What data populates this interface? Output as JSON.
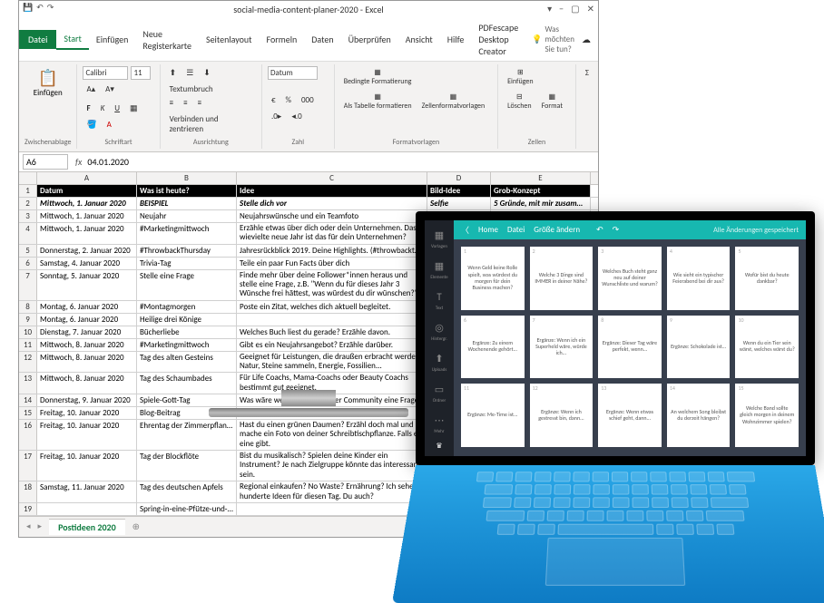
{
  "excel": {
    "title": "social-media-content-planer-2020 - Excel",
    "quickaccess": [
      "⤺",
      "⤻",
      "📄"
    ],
    "wincontrols": [
      "▢",
      "−",
      "✕"
    ],
    "tabs": {
      "file": "Datei",
      "items": [
        "Start",
        "Einfügen",
        "Neue Registerkarte",
        "Seitenlayout",
        "Formeln",
        "Daten",
        "Überprüfen",
        "Ansicht",
        "Hilfe",
        "PDFescape Desktop Creator"
      ],
      "active": "Start",
      "tellme": "Was möchten Sie tun?",
      "share": "☁"
    },
    "ribbon": {
      "clipboard": {
        "label": "Zwischenablage",
        "paste": "Einfügen"
      },
      "font": {
        "label": "Schriftart",
        "name": "Calibri",
        "size": "11"
      },
      "align": {
        "label": "Ausrichtung",
        "wrap": "Textumbruch",
        "merge": "Verbinden und zentrieren"
      },
      "number": {
        "label": "Zahl",
        "format": "Datum"
      },
      "styles": {
        "label": "Formatvorlagen",
        "cond": "Bedingte Formatierung",
        "table": "Als Tabelle formatieren",
        "cell": "Zellenformatvorlagen"
      },
      "cells": {
        "label": "Zellen",
        "insert": "Einfügen",
        "delete": "Löschen",
        "format": "Format"
      }
    },
    "namebox": "A6",
    "formula": "04.01.2020",
    "columns": [
      "A",
      "B",
      "C",
      "D",
      "E"
    ],
    "headers": {
      "a": "Datum",
      "b": "Was ist heute?",
      "c": "Idee",
      "d": "Bild-Idee",
      "e": "Grob-Konzept"
    },
    "data": [
      {
        "n": 2,
        "a": "Mittwoch, 1. Januar 2020",
        "b": "BEISPIEL",
        "c": "Stelle dich vor",
        "d": "Selfie",
        "e": "5 Gründe, mit mir zusammen...",
        "ex": true
      },
      {
        "n": 3,
        "a": "Mittwoch, 1. Januar 2020",
        "b": "Neujahr",
        "c": "Neujahrswünsche und ein Teamfoto",
        "d": "",
        "e": ""
      },
      {
        "n": 4,
        "a": "Mittwoch, 1. Januar 2020",
        "b": "#Marketingmittwoch",
        "c": "Erzähle etwas über dich oder dein Unternehmen. Das wievielte neue Jahr ist das für dein Unternehmen?",
        "d": "",
        "e": "",
        "wrap": true
      },
      {
        "n": 5,
        "a": "Donnerstag, 2. Januar 2020",
        "b": "#ThrowbackThursday",
        "c": "Jahresrückblick 2019. Deine Highlights. (#throwbackthursday #tbt)",
        "d": "",
        "e": ""
      },
      {
        "n": 6,
        "a": "Samstag, 4. Januar 2020",
        "b": "Trivia-Tag",
        "c": "Teile ein paar Fun Facts über dich",
        "d": "",
        "e": ""
      },
      {
        "n": 7,
        "a": "Sonntag, 5. Januar 2020",
        "b": "Stelle eine Frage",
        "c": "Finde mehr über deine Follower*innen heraus und stelle eine Frage, z.B. \"Wenn du für dieses Jahr 3 Wünsche frei hättest, was würdest du dir wünschen?\"",
        "d": "",
        "e": "",
        "wrap": true
      },
      {
        "n": 8,
        "a": "Montag, 6. Januar 2020",
        "b": "#Montagmorgen",
        "c": "Poste ein Zitat, welches dich aktuell begleitet.",
        "d": "",
        "e": ""
      },
      {
        "n": 9,
        "a": "Montag, 6. Januar 2020",
        "b": "Heilige drei Könige",
        "c": "",
        "d": "",
        "e": ""
      },
      {
        "n": 10,
        "a": "Dienstag, 7. Januar 2020",
        "b": "Bücherliebe",
        "c": "Welches Buch liest du gerade? Erzähle davon.",
        "d": "",
        "e": ""
      },
      {
        "n": 11,
        "a": "Mittwoch, 8. Januar 2020",
        "b": "#Marketingmittwoch",
        "c": "Gibt es ein Neujahrsangebot? Erzähle darüber.",
        "d": "",
        "e": ""
      },
      {
        "n": 12,
        "a": "Mittwoch, 8. Januar 2020",
        "b": "Tag des alten Gesteins",
        "c": "Geeignet für Leistungen, die draußen erbracht werden. Natur, Steine sammeln, Energie, Fossilien...",
        "d": "",
        "e": "",
        "wrap": true
      },
      {
        "n": 13,
        "a": "Mittwoch, 8. Januar 2020",
        "b": "Tag des Schaumbades",
        "c": "Für Life Coachs, Mama-Coachs oder Beauty Coachs bestimmt gut geeignet.",
        "d": "",
        "e": "",
        "wrap": true
      },
      {
        "n": 14,
        "a": "Donnerstag, 9. Januar 2020",
        "b": "Spiele-Gott-Tag",
        "c": "Was wäre wenn... Stelle deiner Community eine Frage",
        "d": "",
        "e": ""
      },
      {
        "n": 15,
        "a": "Freitag, 10. Januar 2020",
        "b": "Blog-Beitrag",
        "c": "Verlinke einen aktuellen Blog-Beitrag.",
        "d": "",
        "e": ""
      },
      {
        "n": 16,
        "a": "Freitag, 10. Januar 2020",
        "b": "Ehrentag der Zimmerpflanze",
        "c": "Hast du einen grünen Daumen? Erzähl doch mal und mache ein Foto von deiner Schreibtischpflanze. Falls es eine gibt.",
        "d": "",
        "e": "",
        "wrap": true
      },
      {
        "n": 17,
        "a": "Freitag, 10. Januar 2020",
        "b": "Tag der Blockflöte",
        "c": "Bist du musikalisch? Spielen deine Kinder ein Instrument? Je nach Zielgruppe könnte das interessant sein.",
        "d": "",
        "e": "",
        "wrap": true
      },
      {
        "n": 18,
        "a": "Samstag, 11. Januar 2020",
        "b": "Tag des deutschen Apfels",
        "c": "Regional einkaufen? No Waste? Ernährung? Ich sehe hunderte Ideen für diesen Tag. Du auch?",
        "d": "",
        "e": "",
        "wrap": true
      },
      {
        "n": 19,
        "a": "",
        "b": "Spring-in-eine-Pfütze-und-bespritze-",
        "c": "",
        "d": "",
        "e": ""
      }
    ],
    "sheettab": "Postideen 2020"
  },
  "tablet": {
    "topbar": {
      "home": "Home",
      "file": "Datei",
      "resize": "Größe ändern",
      "status": "Alle Änderungen gespeichert"
    },
    "sidebar": [
      {
        "icon": "▦",
        "label": "Vorlagen"
      },
      {
        "icon": "▦",
        "label": "Elemente"
      },
      {
        "icon": "T",
        "label": "Text"
      },
      {
        "icon": "◎",
        "label": "Hintergr."
      },
      {
        "icon": "⬆",
        "label": "Uploads"
      },
      {
        "icon": "▭",
        "label": "Ordner"
      },
      {
        "icon": "⋯",
        "label": "Mehr"
      }
    ],
    "cards": [
      {
        "n": 1,
        "t": "Wenn Geld keine Rolle spielt, was würdest du morgen für dein Business machen?"
      },
      {
        "n": 2,
        "t": "Welche 3 Dinge sind IMMER in deiner Nähe?"
      },
      {
        "n": 3,
        "t": "Welches Buch steht ganz neu auf deiner Wunschliste und warum?"
      },
      {
        "n": 4,
        "t": "Wie sieht ein typischer Feierabend bei dir aus?"
      },
      {
        "n": 5,
        "t": "Wofür bist du heute dankbar?"
      },
      {
        "n": 6,
        "t": "Ergänze: Zu einem Wochenende gehört..."
      },
      {
        "n": 7,
        "t": "Ergänze: Wenn ich ein Superheld wäre, würde ich..."
      },
      {
        "n": 8,
        "t": "Ergänze: Dieser Tag wäre perfekt, wenn..."
      },
      {
        "n": 9,
        "t": "Ergänze: Schokolade ist..."
      },
      {
        "n": 10,
        "t": "Wenn du ein Tier sein wärst, welches wärst du?"
      },
      {
        "n": 11,
        "t": "Ergänze: Me-Time ist..."
      },
      {
        "n": 12,
        "t": "Ergänze: Wenn ich gestresst bin, dann..."
      },
      {
        "n": 13,
        "t": "Ergänze: Wenn etwas schief geht, dann..."
      },
      {
        "n": 14,
        "t": "An welchem Song bleibst du derzeit hängen?"
      },
      {
        "n": 15,
        "t": "Welche Band sollte gleich morgen in deinem Wohnzimmer spielen?"
      }
    ]
  }
}
